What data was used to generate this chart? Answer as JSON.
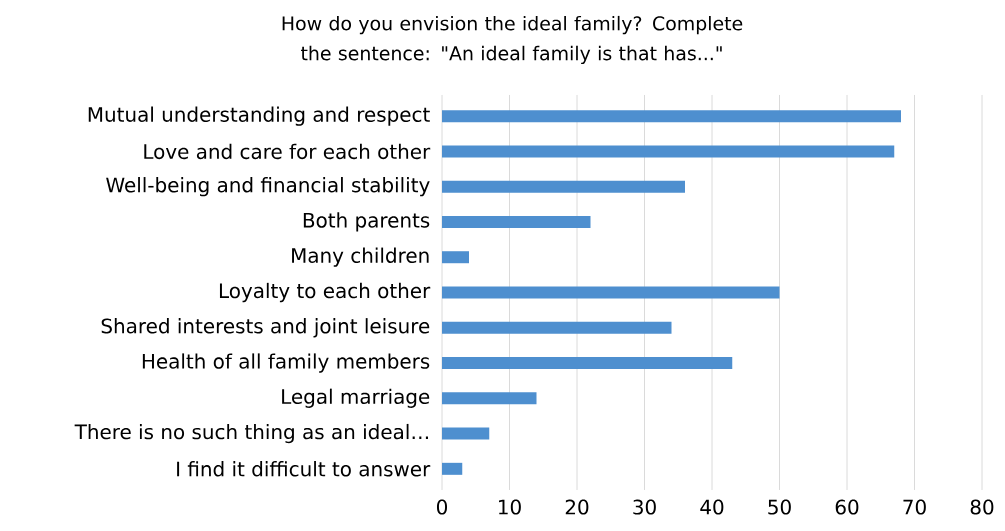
{
  "chart_data": {
    "type": "bar",
    "orientation": "horizontal",
    "title": "How do you envision the ideal family? Complete the sentence: \"An ideal family is that has...\"",
    "categories": [
      "Mutual understanding and respect",
      "Love and care for each other",
      "Well-being and financial stability",
      "Both parents",
      "Many children",
      "Loyalty to each other",
      "Shared interests and joint leisure",
      "Health of all family members",
      "Legal marriage",
      "There is no such thing as an ideal…",
      "I find it difficult to answer"
    ],
    "values": [
      68,
      67,
      36,
      22,
      4,
      50,
      34,
      43,
      14,
      7,
      3
    ],
    "color": "#4e8fcf",
    "xlim": [
      0,
      80
    ],
    "xticks": [
      0,
      10,
      20,
      30,
      40,
      50,
      60,
      70,
      80
    ],
    "grid": "x"
  }
}
